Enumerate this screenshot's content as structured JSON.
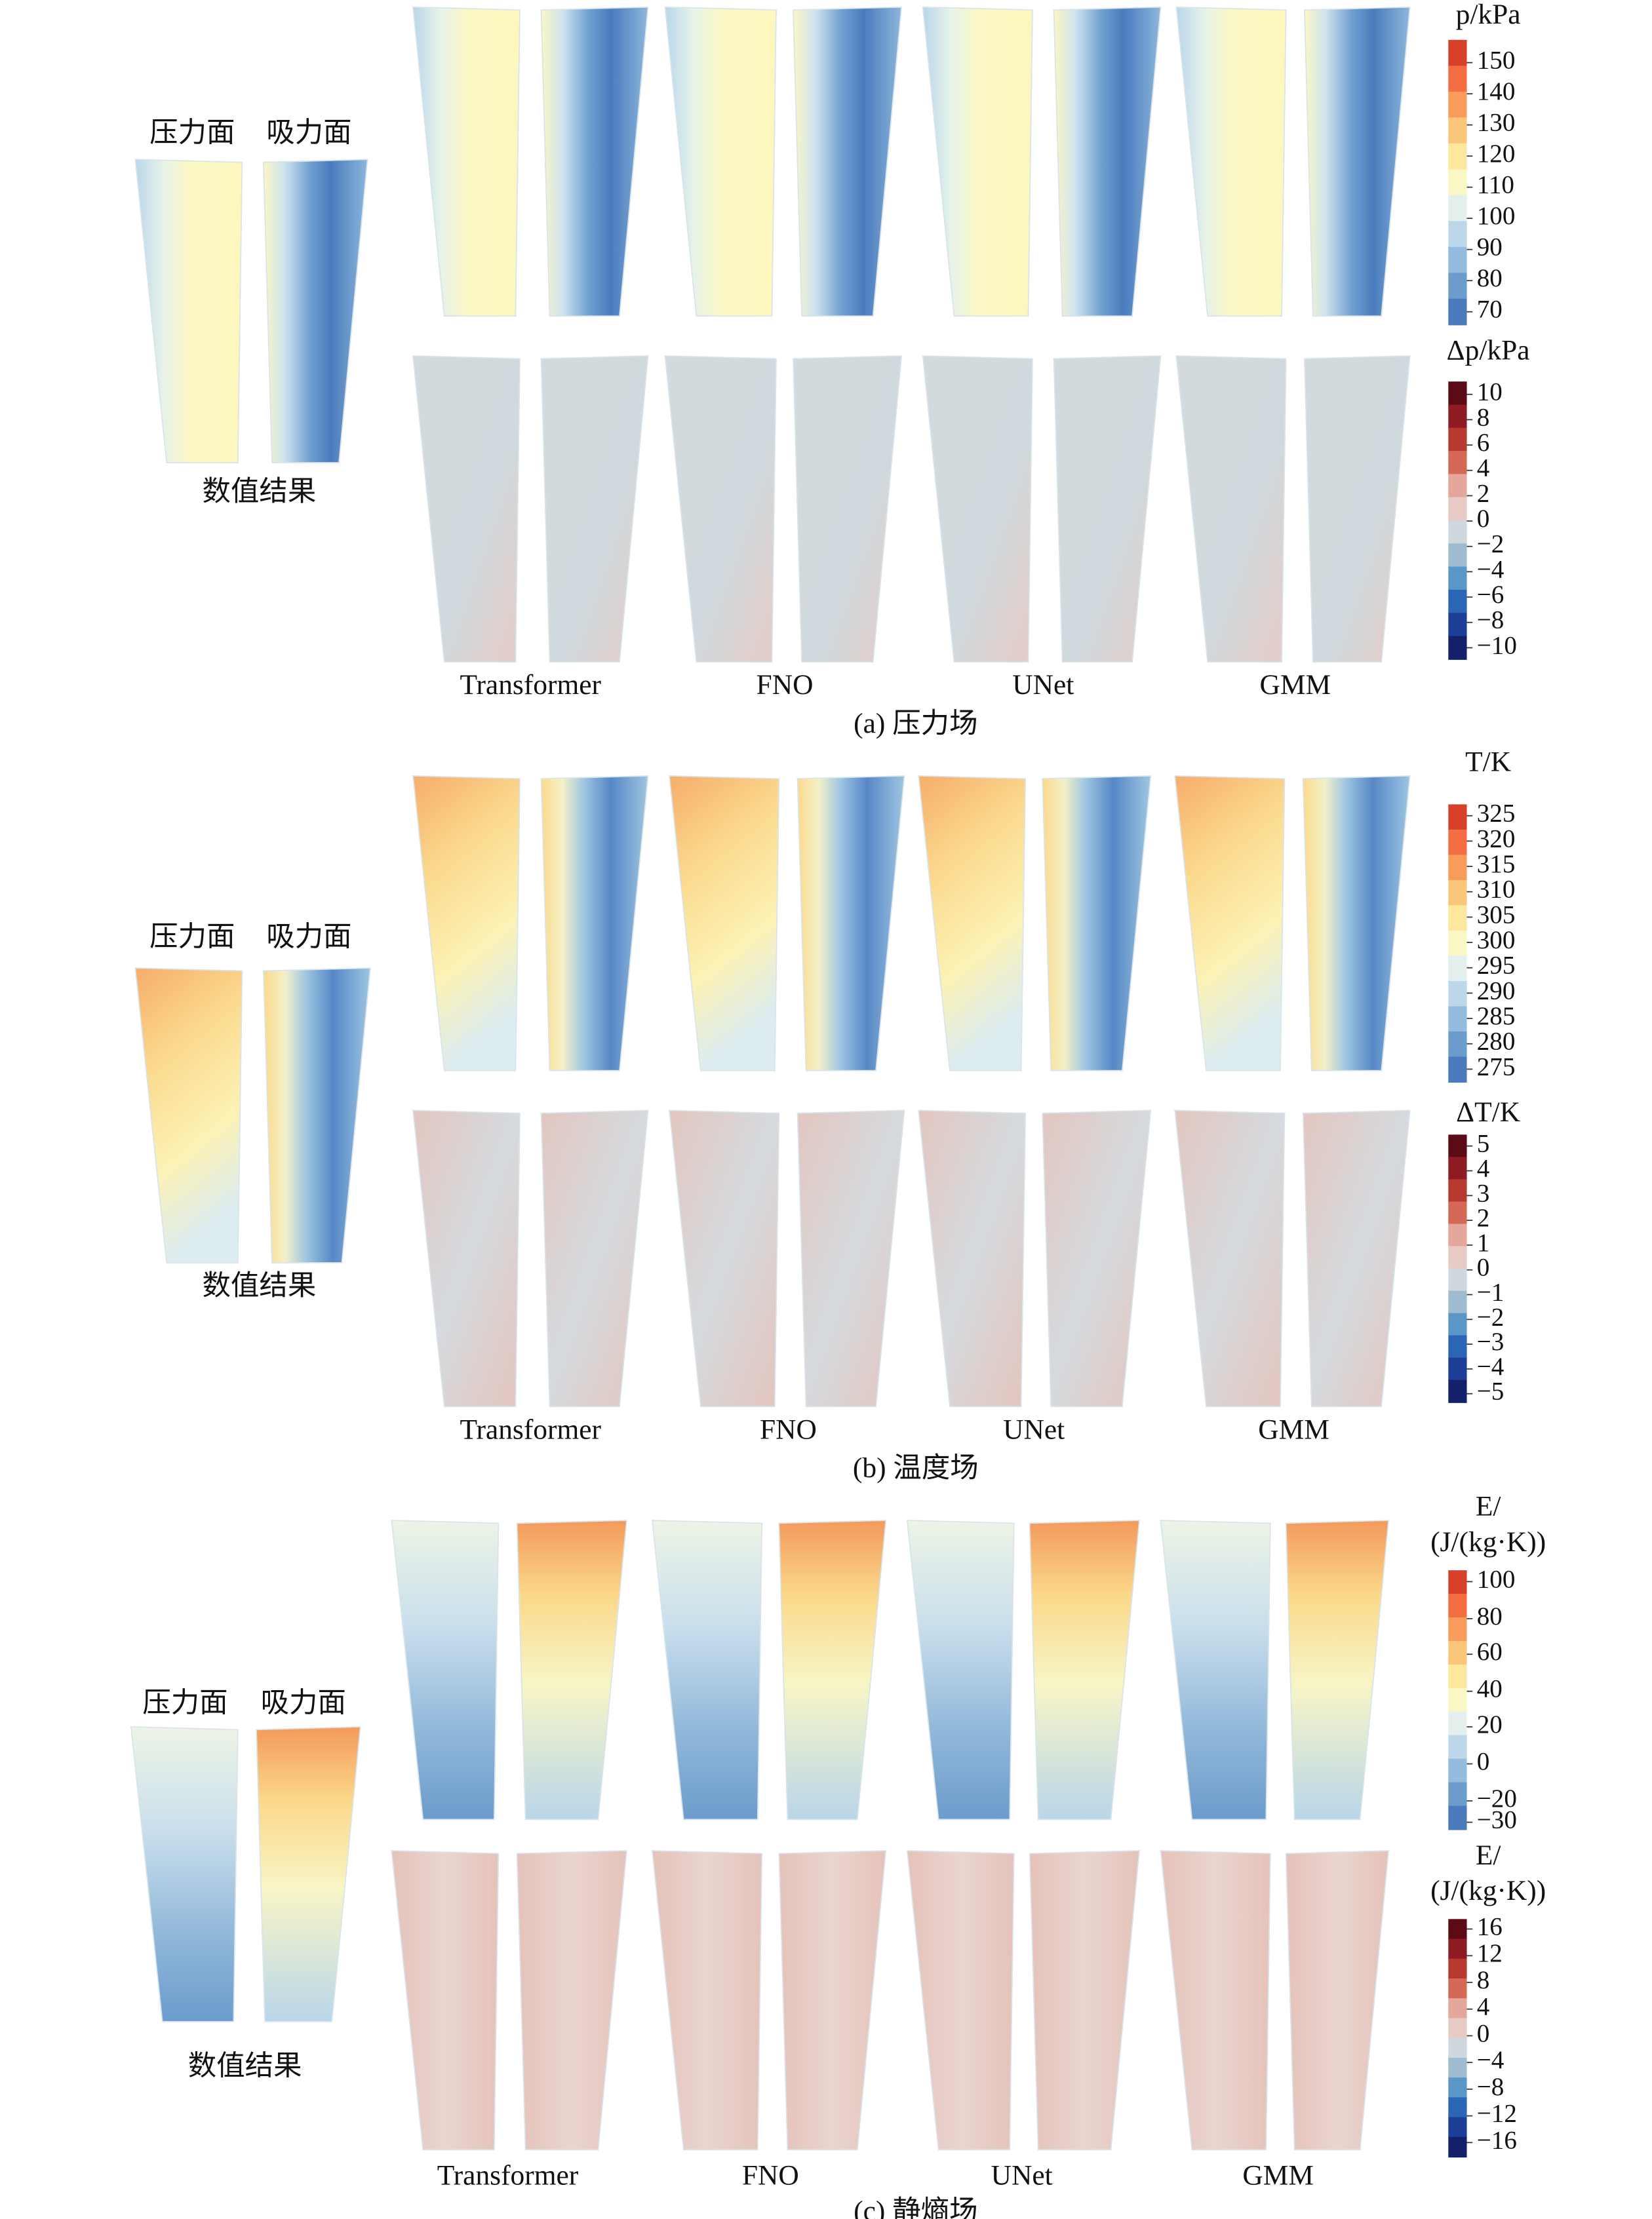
{
  "panels": [
    {
      "caption": "(a) 压力场",
      "pressure_face": "压力面",
      "suction_face": "吸力面",
      "reference": "数值结果",
      "models": [
        "Transformer",
        "FNO",
        "UNet",
        "GMM"
      ],
      "colorbars": [
        {
          "title": [
            "p/kPa"
          ],
          "ticks": [
            "150",
            "140",
            "130",
            "120",
            "110",
            "100",
            "90",
            "80",
            "70"
          ]
        },
        {
          "title": [
            "Δp/kPa"
          ],
          "ticks": [
            "10",
            "8",
            "6",
            "4",
            "2",
            "0",
            "−2",
            "−4",
            "−6",
            "−8",
            "−10"
          ]
        }
      ]
    },
    {
      "caption": "(b) 温度场",
      "pressure_face": "压力面",
      "suction_face": "吸力面",
      "reference": "数值结果",
      "models": [
        "Transformer",
        "FNO",
        "UNet",
        "GMM"
      ],
      "colorbars": [
        {
          "title": [
            "T/K"
          ],
          "ticks": [
            "325",
            "320",
            "315",
            "310",
            "305",
            "300",
            "295",
            "290",
            "285",
            "280",
            "275"
          ]
        },
        {
          "title": [
            "ΔT/K"
          ],
          "ticks": [
            "5",
            "4",
            "3",
            "2",
            "1",
            "0",
            "−1",
            "−2",
            "−3",
            "−4",
            "−5"
          ]
        }
      ]
    },
    {
      "caption": "(c) 静熵场",
      "pressure_face": "压力面",
      "suction_face": "吸力面",
      "reference": "数值结果",
      "models": [
        "Transformer",
        "FNO",
        "UNet",
        "GMM"
      ],
      "colorbars": [
        {
          "title": [
            "E/",
            "(J/(kg·K))"
          ],
          "ticks": [
            "100",
            "80",
            "60",
            "40",
            "20",
            "0",
            "−20",
            "−30"
          ]
        },
        {
          "title": [
            "E/",
            "(J/(kg·K))"
          ],
          "ticks": [
            "16",
            "12",
            "8",
            "4",
            "0",
            "−4",
            "−8",
            "−12",
            "−16"
          ]
        }
      ]
    }
  ]
}
